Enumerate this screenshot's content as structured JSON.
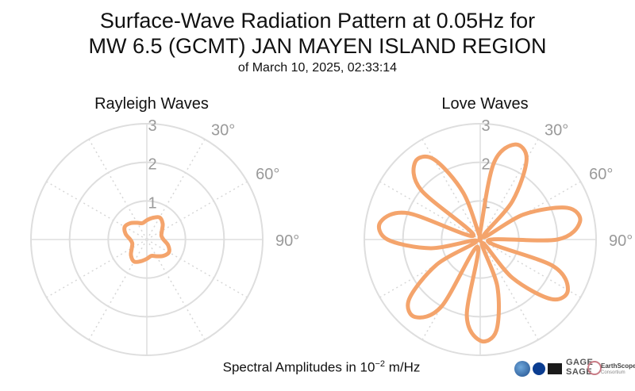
{
  "title_line1": "Surface-Wave Radiation Pattern at 0.05Hz for",
  "title_line2": "MW 6.5 (GCMT) JAN MAYEN ISLAND REGION",
  "subtitle": "of March 10, 2025, 02:33:14",
  "footer": {
    "prefix": "Spectral Amplitudes in 10",
    "exponent": "−2",
    "suffix": " m/Hz"
  },
  "logos": {
    "gage_line1": "GAGE",
    "gage_line2": "SAGE",
    "earthscope_line1": "EarthScope",
    "earthscope_line2": "Consortium"
  },
  "colors": {
    "pattern": "#f4a46c",
    "grid": "#dedede",
    "grid_dotted": "#d6d6d6",
    "tick_label": "#9a9a9a"
  },
  "chart_data": [
    {
      "type": "polar-line",
      "title": "Rayleigh Waves",
      "radial_range": [
        0,
        3
      ],
      "radial_ticks": [
        1,
        2,
        3
      ],
      "angular_tick_labels": [
        "30°",
        "60°",
        "90°"
      ],
      "angle_convention": "clockwise from north (top)",
      "angles_deg": [
        0,
        15,
        30,
        45,
        60,
        75,
        90,
        105,
        120,
        135,
        150,
        165,
        180,
        195,
        210,
        225,
        240,
        255,
        270,
        285,
        300,
        315,
        330,
        345
      ],
      "amplitudes": [
        0.5,
        0.58,
        0.66,
        0.58,
        0.45,
        0.39,
        0.43,
        0.57,
        0.66,
        0.6,
        0.5,
        0.44,
        0.5,
        0.58,
        0.66,
        0.58,
        0.45,
        0.39,
        0.43,
        0.57,
        0.66,
        0.6,
        0.5,
        0.44
      ]
    },
    {
      "type": "polar-line",
      "title": "Love Waves",
      "radial_range": [
        0,
        3
      ],
      "radial_ticks": [
        1,
        2,
        3
      ],
      "angular_tick_labels": [
        "30°",
        "60°",
        "90°"
      ],
      "angle_convention": "clockwise from north (top)",
      "angles_deg": [
        0,
        10,
        20,
        30,
        40,
        50,
        60,
        70,
        80,
        90,
        100,
        110,
        120,
        130,
        140,
        150,
        160,
        170,
        180,
        190,
        200,
        210,
        220,
        230,
        240,
        250,
        260,
        270,
        280,
        290,
        300,
        310,
        320,
        330,
        340,
        350
      ],
      "amplitudes": [
        0.2,
        2.0,
        2.62,
        2.4,
        1.3,
        0.1,
        1.3,
        2.4,
        2.62,
        2.0,
        0.2,
        2.0,
        2.62,
        2.4,
        1.3,
        0.1,
        1.3,
        2.4,
        2.62,
        2.0,
        0.2,
        2.0,
        2.62,
        2.4,
        1.3,
        0.1,
        1.3,
        2.4,
        2.62,
        2.0,
        0.2,
        2.0,
        2.62,
        2.4,
        1.3,
        0.1
      ]
    }
  ]
}
